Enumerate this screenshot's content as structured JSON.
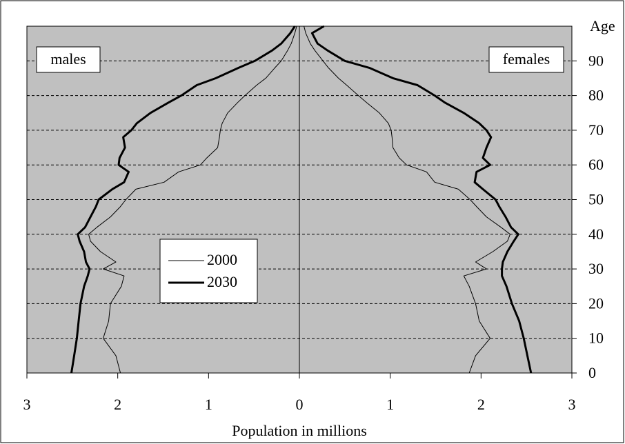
{
  "chart_data": {
    "type": "population-pyramid",
    "x_label": "Population in millions",
    "y_label": "Age",
    "left_label": "males",
    "right_label": "females",
    "xlim": [
      -3,
      3
    ],
    "xticks": [
      {
        "value": -3,
        "label": "3"
      },
      {
        "value": -2,
        "label": "2"
      },
      {
        "value": -1,
        "label": "1"
      },
      0,
      1,
      2,
      {
        "value": 3,
        "label": "3"
      }
    ],
    "ylim": [
      0,
      100
    ],
    "yticks": [
      0,
      10,
      20,
      30,
      40,
      50,
      60,
      70,
      80,
      90
    ],
    "grid": true,
    "background": "#c0c0c0",
    "ages": [
      0,
      5,
      10,
      15,
      20,
      25,
      28,
      30,
      32,
      35,
      38,
      40,
      42,
      45,
      48,
      50,
      53,
      55,
      58,
      60,
      62,
      65,
      68,
      70,
      72,
      75,
      78,
      80,
      83,
      85,
      88,
      90,
      93,
      95,
      98,
      100
    ],
    "series": [
      {
        "name": "2000",
        "color": "#000000",
        "line_width": 1,
        "males": [
          1.97,
          2.02,
          2.16,
          2.1,
          2.08,
          1.96,
          1.93,
          2.16,
          2.02,
          2.19,
          2.3,
          2.32,
          2.23,
          2.08,
          1.97,
          1.91,
          1.8,
          1.49,
          1.33,
          1.09,
          1.02,
          0.9,
          0.88,
          0.87,
          0.85,
          0.79,
          0.68,
          0.6,
          0.47,
          0.37,
          0.27,
          0.2,
          0.13,
          0.09,
          0.05,
          0.03
        ],
        "females": [
          1.87,
          1.94,
          2.1,
          1.98,
          1.94,
          1.87,
          1.81,
          2.06,
          1.94,
          2.13,
          2.29,
          2.32,
          2.22,
          2.06,
          1.95,
          1.88,
          1.75,
          1.49,
          1.4,
          1.18,
          1.1,
          1.03,
          1.02,
          1.01,
          0.98,
          0.88,
          0.74,
          0.65,
          0.52,
          0.43,
          0.32,
          0.26,
          0.17,
          0.12,
          0.07,
          0.05
        ]
      },
      {
        "name": "2030",
        "color": "#000000",
        "line_width": 3,
        "males": [
          2.51,
          2.48,
          2.45,
          2.43,
          2.41,
          2.37,
          2.33,
          2.31,
          2.35,
          2.37,
          2.42,
          2.44,
          2.36,
          2.3,
          2.24,
          2.21,
          2.06,
          1.93,
          1.88,
          1.99,
          1.98,
          1.92,
          1.94,
          1.85,
          1.79,
          1.64,
          1.44,
          1.3,
          1.13,
          0.92,
          0.67,
          0.49,
          0.3,
          0.2,
          0.1,
          0.05
        ],
        "females": [
          2.55,
          2.51,
          2.47,
          2.42,
          2.34,
          2.28,
          2.23,
          2.23,
          2.24,
          2.29,
          2.36,
          2.41,
          2.33,
          2.27,
          2.2,
          2.16,
          2.02,
          1.93,
          1.95,
          2.1,
          2.02,
          2.06,
          2.11,
          2.06,
          1.98,
          1.81,
          1.6,
          1.49,
          1.3,
          1.03,
          0.77,
          0.5,
          0.31,
          0.2,
          0.14,
          0.27
        ]
      }
    ]
  }
}
